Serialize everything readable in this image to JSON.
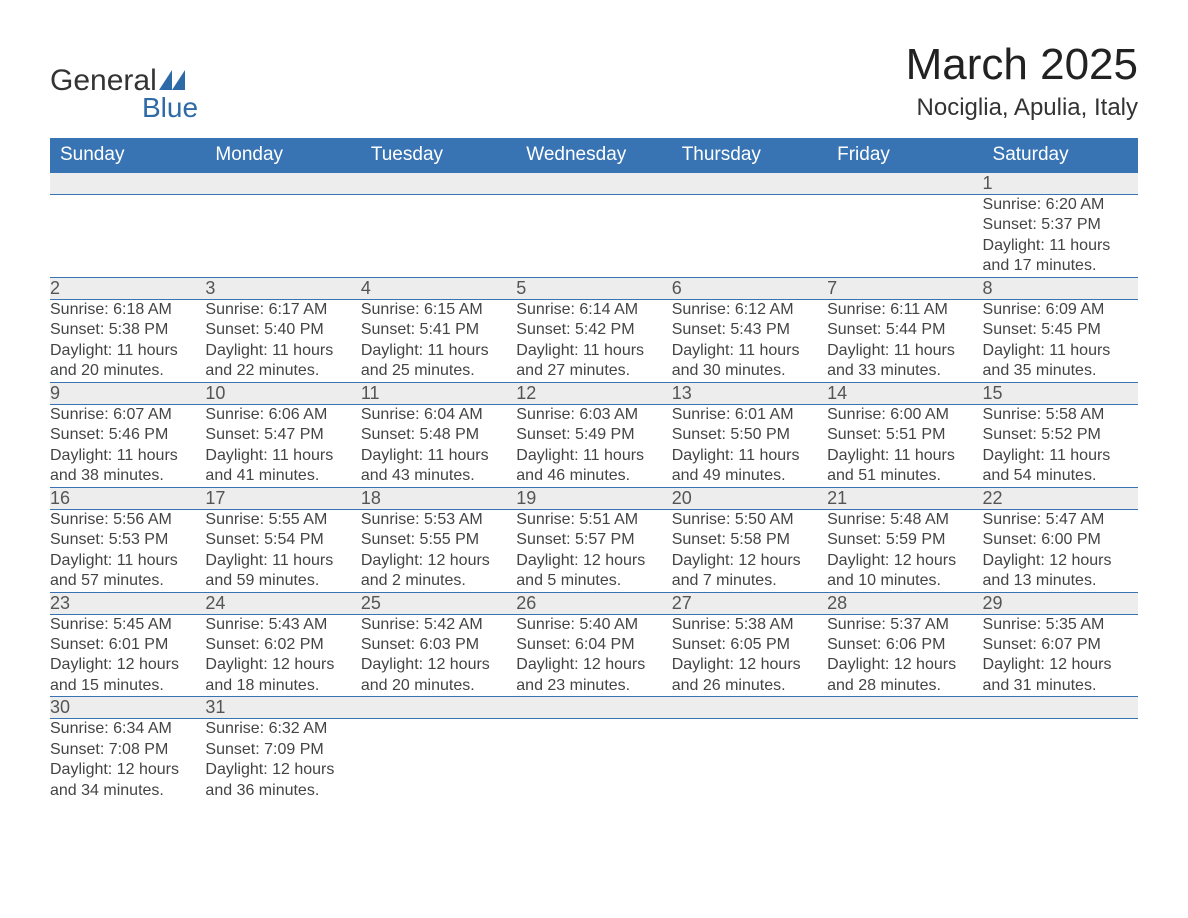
{
  "logo": {
    "brand1": "General",
    "brand2": "Blue",
    "accent_color": "#2f6aa8",
    "text_color": "#333333"
  },
  "title": "March 2025",
  "location": "Nociglia, Apulia, Italy",
  "colors": {
    "header_bg": "#3874b3",
    "header_text": "#ffffff",
    "daynum_bg": "#ededed",
    "row_divider": "#3874b3",
    "body_bg": "#ffffff",
    "text": "#444444"
  },
  "typography": {
    "title_fontsize": 44,
    "location_fontsize": 24,
    "header_fontsize": 19,
    "daynum_fontsize": 18,
    "detail_fontsize": 16,
    "font_family": "Arial"
  },
  "weekdays": [
    "Sunday",
    "Monday",
    "Tuesday",
    "Wednesday",
    "Thursday",
    "Friday",
    "Saturday"
  ],
  "weeks": [
    [
      null,
      null,
      null,
      null,
      null,
      null,
      {
        "day": "1",
        "sunrise": "Sunrise: 6:20 AM",
        "sunset": "Sunset: 5:37 PM",
        "daylight1": "Daylight: 11 hours",
        "daylight2": "and 17 minutes."
      }
    ],
    [
      {
        "day": "2",
        "sunrise": "Sunrise: 6:18 AM",
        "sunset": "Sunset: 5:38 PM",
        "daylight1": "Daylight: 11 hours",
        "daylight2": "and 20 minutes."
      },
      {
        "day": "3",
        "sunrise": "Sunrise: 6:17 AM",
        "sunset": "Sunset: 5:40 PM",
        "daylight1": "Daylight: 11 hours",
        "daylight2": "and 22 minutes."
      },
      {
        "day": "4",
        "sunrise": "Sunrise: 6:15 AM",
        "sunset": "Sunset: 5:41 PM",
        "daylight1": "Daylight: 11 hours",
        "daylight2": "and 25 minutes."
      },
      {
        "day": "5",
        "sunrise": "Sunrise: 6:14 AM",
        "sunset": "Sunset: 5:42 PM",
        "daylight1": "Daylight: 11 hours",
        "daylight2": "and 27 minutes."
      },
      {
        "day": "6",
        "sunrise": "Sunrise: 6:12 AM",
        "sunset": "Sunset: 5:43 PM",
        "daylight1": "Daylight: 11 hours",
        "daylight2": "and 30 minutes."
      },
      {
        "day": "7",
        "sunrise": "Sunrise: 6:11 AM",
        "sunset": "Sunset: 5:44 PM",
        "daylight1": "Daylight: 11 hours",
        "daylight2": "and 33 minutes."
      },
      {
        "day": "8",
        "sunrise": "Sunrise: 6:09 AM",
        "sunset": "Sunset: 5:45 PM",
        "daylight1": "Daylight: 11 hours",
        "daylight2": "and 35 minutes."
      }
    ],
    [
      {
        "day": "9",
        "sunrise": "Sunrise: 6:07 AM",
        "sunset": "Sunset: 5:46 PM",
        "daylight1": "Daylight: 11 hours",
        "daylight2": "and 38 minutes."
      },
      {
        "day": "10",
        "sunrise": "Sunrise: 6:06 AM",
        "sunset": "Sunset: 5:47 PM",
        "daylight1": "Daylight: 11 hours",
        "daylight2": "and 41 minutes."
      },
      {
        "day": "11",
        "sunrise": "Sunrise: 6:04 AM",
        "sunset": "Sunset: 5:48 PM",
        "daylight1": "Daylight: 11 hours",
        "daylight2": "and 43 minutes."
      },
      {
        "day": "12",
        "sunrise": "Sunrise: 6:03 AM",
        "sunset": "Sunset: 5:49 PM",
        "daylight1": "Daylight: 11 hours",
        "daylight2": "and 46 minutes."
      },
      {
        "day": "13",
        "sunrise": "Sunrise: 6:01 AM",
        "sunset": "Sunset: 5:50 PM",
        "daylight1": "Daylight: 11 hours",
        "daylight2": "and 49 minutes."
      },
      {
        "day": "14",
        "sunrise": "Sunrise: 6:00 AM",
        "sunset": "Sunset: 5:51 PM",
        "daylight1": "Daylight: 11 hours",
        "daylight2": "and 51 minutes."
      },
      {
        "day": "15",
        "sunrise": "Sunrise: 5:58 AM",
        "sunset": "Sunset: 5:52 PM",
        "daylight1": "Daylight: 11 hours",
        "daylight2": "and 54 minutes."
      }
    ],
    [
      {
        "day": "16",
        "sunrise": "Sunrise: 5:56 AM",
        "sunset": "Sunset: 5:53 PM",
        "daylight1": "Daylight: 11 hours",
        "daylight2": "and 57 minutes."
      },
      {
        "day": "17",
        "sunrise": "Sunrise: 5:55 AM",
        "sunset": "Sunset: 5:54 PM",
        "daylight1": "Daylight: 11 hours",
        "daylight2": "and 59 minutes."
      },
      {
        "day": "18",
        "sunrise": "Sunrise: 5:53 AM",
        "sunset": "Sunset: 5:55 PM",
        "daylight1": "Daylight: 12 hours",
        "daylight2": "and 2 minutes."
      },
      {
        "day": "19",
        "sunrise": "Sunrise: 5:51 AM",
        "sunset": "Sunset: 5:57 PM",
        "daylight1": "Daylight: 12 hours",
        "daylight2": "and 5 minutes."
      },
      {
        "day": "20",
        "sunrise": "Sunrise: 5:50 AM",
        "sunset": "Sunset: 5:58 PM",
        "daylight1": "Daylight: 12 hours",
        "daylight2": "and 7 minutes."
      },
      {
        "day": "21",
        "sunrise": "Sunrise: 5:48 AM",
        "sunset": "Sunset: 5:59 PM",
        "daylight1": "Daylight: 12 hours",
        "daylight2": "and 10 minutes."
      },
      {
        "day": "22",
        "sunrise": "Sunrise: 5:47 AM",
        "sunset": "Sunset: 6:00 PM",
        "daylight1": "Daylight: 12 hours",
        "daylight2": "and 13 minutes."
      }
    ],
    [
      {
        "day": "23",
        "sunrise": "Sunrise: 5:45 AM",
        "sunset": "Sunset: 6:01 PM",
        "daylight1": "Daylight: 12 hours",
        "daylight2": "and 15 minutes."
      },
      {
        "day": "24",
        "sunrise": "Sunrise: 5:43 AM",
        "sunset": "Sunset: 6:02 PM",
        "daylight1": "Daylight: 12 hours",
        "daylight2": "and 18 minutes."
      },
      {
        "day": "25",
        "sunrise": "Sunrise: 5:42 AM",
        "sunset": "Sunset: 6:03 PM",
        "daylight1": "Daylight: 12 hours",
        "daylight2": "and 20 minutes."
      },
      {
        "day": "26",
        "sunrise": "Sunrise: 5:40 AM",
        "sunset": "Sunset: 6:04 PM",
        "daylight1": "Daylight: 12 hours",
        "daylight2": "and 23 minutes."
      },
      {
        "day": "27",
        "sunrise": "Sunrise: 5:38 AM",
        "sunset": "Sunset: 6:05 PM",
        "daylight1": "Daylight: 12 hours",
        "daylight2": "and 26 minutes."
      },
      {
        "day": "28",
        "sunrise": "Sunrise: 5:37 AM",
        "sunset": "Sunset: 6:06 PM",
        "daylight1": "Daylight: 12 hours",
        "daylight2": "and 28 minutes."
      },
      {
        "day": "29",
        "sunrise": "Sunrise: 5:35 AM",
        "sunset": "Sunset: 6:07 PM",
        "daylight1": "Daylight: 12 hours",
        "daylight2": "and 31 minutes."
      }
    ],
    [
      {
        "day": "30",
        "sunrise": "Sunrise: 6:34 AM",
        "sunset": "Sunset: 7:08 PM",
        "daylight1": "Daylight: 12 hours",
        "daylight2": "and 34 minutes."
      },
      {
        "day": "31",
        "sunrise": "Sunrise: 6:32 AM",
        "sunset": "Sunset: 7:09 PM",
        "daylight1": "Daylight: 12 hours",
        "daylight2": "and 36 minutes."
      },
      null,
      null,
      null,
      null,
      null
    ]
  ]
}
